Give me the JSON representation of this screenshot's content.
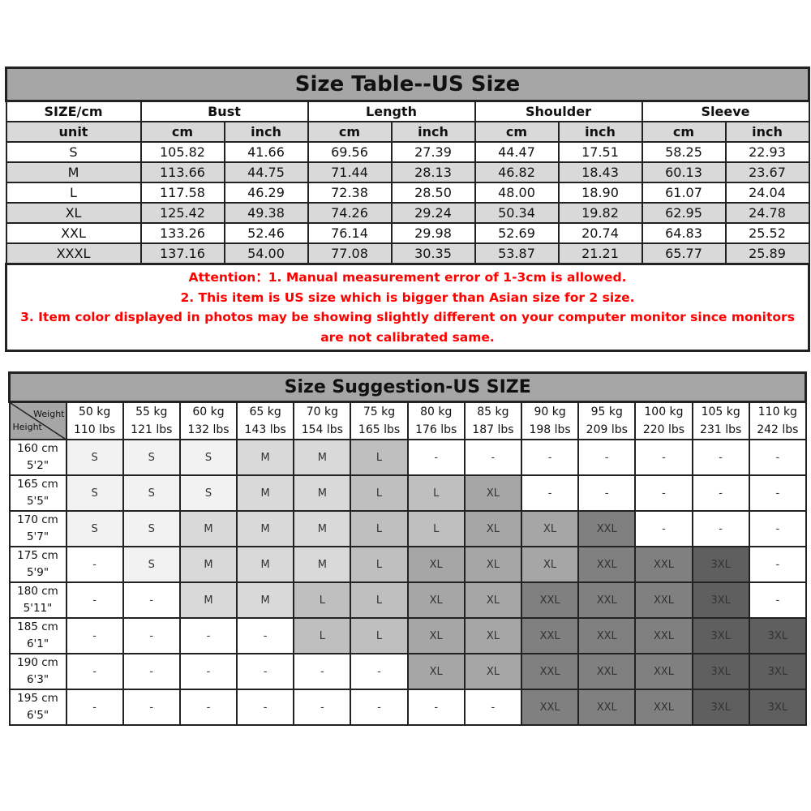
{
  "size_table": {
    "title": "Size Table--US Size",
    "header1": [
      "SIZE/cm",
      "Bust",
      "Length",
      "Shoulder",
      "Sleeve"
    ],
    "header2": [
      "unit",
      "cm",
      "inch",
      "cm",
      "inch",
      "cm",
      "inch",
      "cm",
      "inch"
    ],
    "rows": [
      [
        "S",
        "105.82",
        "41.66",
        "69.56",
        "27.39",
        "44.47",
        "17.51",
        "58.25",
        "22.93"
      ],
      [
        "M",
        "113.66",
        "44.75",
        "71.44",
        "28.13",
        "46.82",
        "18.43",
        "60.13",
        "23.67"
      ],
      [
        "L",
        "117.58",
        "46.29",
        "72.38",
        "28.50",
        "48.00",
        "18.90",
        "61.07",
        "24.04"
      ],
      [
        "XL",
        "125.42",
        "49.38",
        "74.26",
        "29.24",
        "50.34",
        "19.82",
        "62.95",
        "24.78"
      ],
      [
        "XXL",
        "133.26",
        "52.46",
        "76.14",
        "29.98",
        "52.69",
        "20.74",
        "64.83",
        "25.52"
      ],
      [
        "XXXL",
        "137.16",
        "54.00",
        "77.08",
        "30.35",
        "53.87",
        "21.21",
        "65.77",
        "25.89"
      ]
    ],
    "notes": [
      "Attention：1. Manual measurement error of 1-3cm is allowed.",
      "2. This item is US size which is bigger than Asian size for 2 size.",
      "3. Item color displayed in photos may be showing slightly different on your computer monitor since monitors are not calibrated same."
    ],
    "notes_color": "#ff0000"
  },
  "size_suggestion": {
    "title": "Size Suggestion-US SIZE",
    "corner_weight": "Weight",
    "corner_height": "Height",
    "weights": [
      [
        "50 kg",
        "110 lbs"
      ],
      [
        "55 kg",
        "121 lbs"
      ],
      [
        "60 kg",
        "132 lbs"
      ],
      [
        "65 kg",
        "143 lbs"
      ],
      [
        "70 kg",
        "154 lbs"
      ],
      [
        "75 kg",
        "165 lbs"
      ],
      [
        "80 kg",
        "176 lbs"
      ],
      [
        "85 kg",
        "187 lbs"
      ],
      [
        "90 kg",
        "198 lbs"
      ],
      [
        "95 kg",
        "209 lbs"
      ],
      [
        "100 kg",
        "220 lbs"
      ],
      [
        "105 kg",
        "231 lbs"
      ],
      [
        "110 kg",
        "242 lbs"
      ]
    ],
    "rows": [
      {
        "height": [
          "160 cm",
          "5'2\""
        ],
        "sizes": [
          "S",
          "S",
          "S",
          "M",
          "M",
          "L",
          "-",
          "-",
          "-",
          "-",
          "-",
          "-",
          "-"
        ]
      },
      {
        "height": [
          "165 cm",
          "5'5\""
        ],
        "sizes": [
          "S",
          "S",
          "S",
          "M",
          "M",
          "L",
          "L",
          "XL",
          "-",
          "-",
          "-",
          "-",
          "-"
        ]
      },
      {
        "height": [
          "170 cm",
          "5'7\""
        ],
        "sizes": [
          "S",
          "S",
          "M",
          "M",
          "M",
          "L",
          "L",
          "XL",
          "XL",
          "XXL",
          "-",
          "-",
          "-"
        ]
      },
      {
        "height": [
          "175 cm",
          "5'9\""
        ],
        "sizes": [
          "-",
          "S",
          "M",
          "M",
          "M",
          "L",
          "XL",
          "XL",
          "XL",
          "XXL",
          "XXL",
          "3XL",
          "-"
        ]
      },
      {
        "height": [
          "180 cm",
          "5'11\""
        ],
        "sizes": [
          "-",
          "-",
          "M",
          "M",
          "L",
          "L",
          "XL",
          "XL",
          "XXL",
          "XXL",
          "XXL",
          "3XL",
          "-"
        ]
      },
      {
        "height": [
          "185 cm",
          "6'1\""
        ],
        "sizes": [
          "-",
          "-",
          "-",
          "-",
          "L",
          "L",
          "XL",
          "XL",
          "XXL",
          "XXL",
          "XXL",
          "3XL",
          "3XL"
        ]
      },
      {
        "height": [
          "190 cm",
          "6'3\""
        ],
        "sizes": [
          "-",
          "-",
          "-",
          "-",
          "-",
          "-",
          "XL",
          "XL",
          "XXL",
          "XXL",
          "XXL",
          "3XL",
          "3XL"
        ]
      },
      {
        "height": [
          "195 cm",
          "6'5\""
        ],
        "sizes": [
          "-",
          "-",
          "-",
          "-",
          "-",
          "-",
          "-",
          "-",
          "XXL",
          "XXL",
          "XXL",
          "3XL",
          "3XL"
        ]
      }
    ],
    "size_colors": {
      "S": "#f2f2f2",
      "M": "#d9d9d9",
      "L": "#bfbfbf",
      "XL": "#a6a6a6",
      "XXL": "#808080",
      "3XL": "#5f5f5f",
      "-": "#ffffff"
    }
  }
}
